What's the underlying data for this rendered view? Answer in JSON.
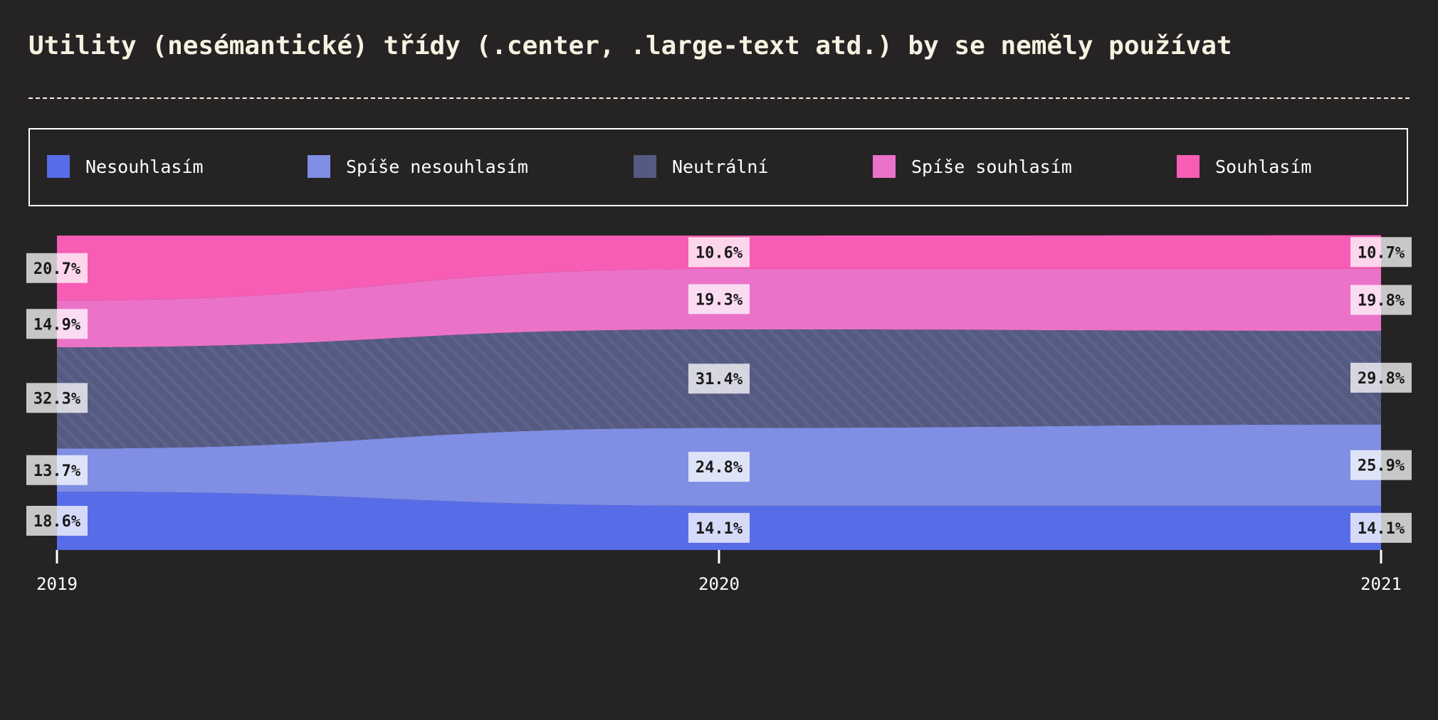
{
  "chart_data": {
    "type": "area",
    "stacked": true,
    "normalized": true,
    "title": "Utility (nesémantické) třídy (.center, .large-text atd.) by se neměly používat",
    "x": [
      "2019",
      "2020",
      "2021"
    ],
    "series": [
      {
        "name": "Nesouhlasím",
        "color": "#576de8",
        "values": [
          18.6,
          14.1,
          14.1
        ],
        "labels": [
          "18.6%",
          "14.1%",
          "14.1%"
        ]
      },
      {
        "name": "Spíše nesouhlasím",
        "color": "#808ee3",
        "values": [
          13.7,
          24.8,
          25.9
        ],
        "labels": [
          "13.7%",
          "24.8%",
          "25.9%"
        ]
      },
      {
        "name": "Neutrální",
        "color": "#555a82",
        "pattern": "diagonal-stripes",
        "values": [
          32.3,
          31.4,
          29.8
        ],
        "labels": [
          "32.3%",
          "31.4%",
          "29.8%"
        ]
      },
      {
        "name": "Spíše souhlasím",
        "color": "#eb72c9",
        "values": [
          14.9,
          19.3,
          19.8
        ],
        "labels": [
          "14.9%",
          "19.3%",
          "19.8%"
        ]
      },
      {
        "name": "Souhlasím",
        "color": "#f75db4",
        "values": [
          20.7,
          10.6,
          10.7
        ],
        "labels": [
          "20.7%",
          "10.6%",
          "10.7%"
        ]
      }
    ],
    "ylim": [
      0,
      100
    ],
    "legend_position": "top",
    "grid": false
  }
}
